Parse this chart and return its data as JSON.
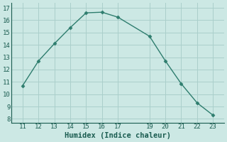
{
  "x": [
    11,
    12,
    13,
    14,
    15,
    16,
    17,
    19,
    20,
    21,
    22,
    23
  ],
  "y": [
    10.7,
    12.7,
    14.1,
    15.4,
    16.6,
    16.65,
    16.25,
    14.7,
    12.7,
    10.85,
    9.3,
    8.3
  ],
  "line_color": "#2e7d6e",
  "marker": "D",
  "marker_size": 2.5,
  "bg_color": "#cce8e4",
  "grid_color": "#aacfcb",
  "xlabel": "Humidex (Indice chaleur)",
  "xlabel_fontsize": 7.5,
  "xticks": [
    11,
    12,
    13,
    14,
    15,
    16,
    17,
    19,
    20,
    21,
    22,
    23
  ],
  "yticks": [
    8,
    9,
    10,
    11,
    12,
    13,
    14,
    15,
    16,
    17
  ],
  "xlim": [
    10.3,
    23.7
  ],
  "ylim": [
    7.7,
    17.4
  ],
  "tick_fontsize": 6.5,
  "tick_color": "#1a5c50",
  "label_color": "#1a5c50",
  "line_width": 1.0
}
